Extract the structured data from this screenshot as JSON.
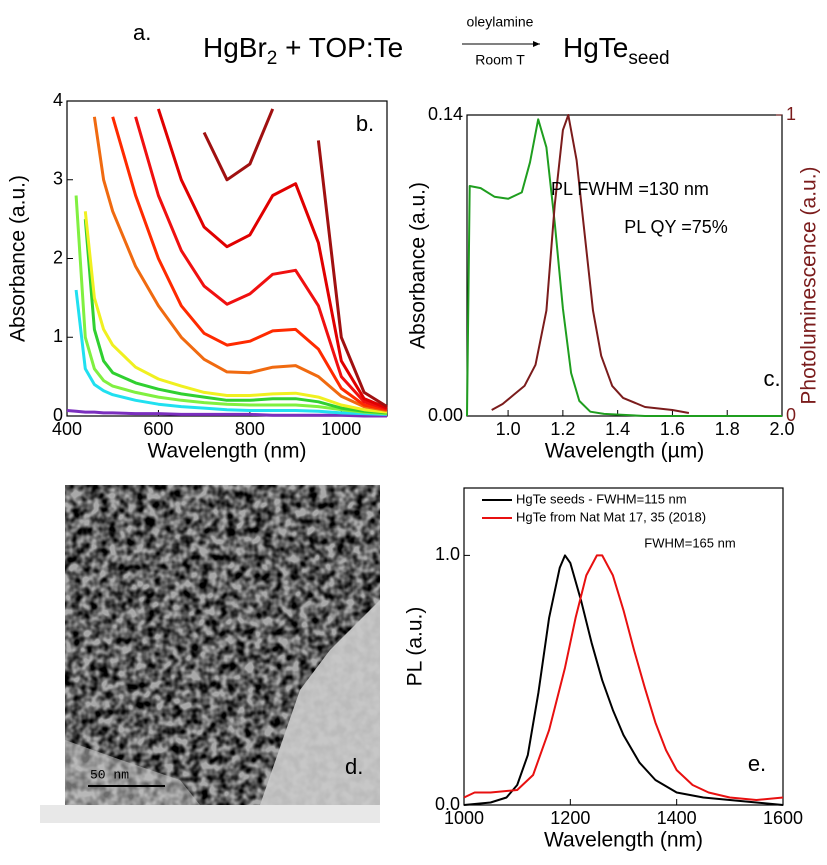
{
  "header": {
    "label": "a.",
    "reactant1": "HgBr",
    "reactant1_sub": "2",
    "reactant2": " + TOP:Te",
    "above_arrow": "oleylamine",
    "below_arrow": "Room T",
    "product": "HgTe",
    "product_sub": "seed"
  },
  "panel_d": {
    "label": "d.",
    "scale_bar": "50 nm"
  },
  "chart_data": [
    {
      "type": "line",
      "panel_label": "b.",
      "x_label": "Wavelength (nm)",
      "y_label": "Absorbance (a.u.)",
      "xlim": [
        400,
        1100
      ],
      "xticks": [
        400,
        600,
        800,
        1000
      ],
      "ylim": [
        0,
        4
      ],
      "yticks": [
        0,
        1,
        2,
        3,
        4
      ],
      "x": [
        400,
        420,
        440,
        460,
        480,
        500,
        550,
        600,
        650,
        700,
        750,
        800,
        850,
        900,
        950,
        1000,
        1050,
        1100
      ],
      "series": [
        {
          "color": "#7b2fbe",
          "values": [
            0.07,
            0.06,
            0.05,
            0.05,
            0.04,
            0.04,
            0.03,
            0.03,
            0.02,
            0.02,
            0.02,
            0.02,
            0.01,
            0.01,
            0.01,
            0.01,
            0,
            0
          ]
        },
        {
          "color": "#20e0f0",
          "values": [
            null,
            1.6,
            0.6,
            0.4,
            0.32,
            0.27,
            0.2,
            0.15,
            0.12,
            0.1,
            0.08,
            0.07,
            0.07,
            0.07,
            0.06,
            0.04,
            0.03,
            0.02
          ]
        },
        {
          "color": "#80f040",
          "values": [
            null,
            2.8,
            1.0,
            0.6,
            0.45,
            0.38,
            0.3,
            0.24,
            0.2,
            0.17,
            0.15,
            0.14,
            0.14,
            0.14,
            0.12,
            0.08,
            0.05,
            0.03
          ]
        },
        {
          "color": "#30d030",
          "values": [
            null,
            null,
            2.5,
            1.1,
            0.7,
            0.55,
            0.42,
            0.34,
            0.28,
            0.24,
            0.2,
            0.2,
            0.22,
            0.22,
            0.18,
            0.1,
            0.06,
            0.04
          ]
        },
        {
          "color": "#f0f020",
          "values": [
            null,
            null,
            2.6,
            1.5,
            1.1,
            0.9,
            0.62,
            0.47,
            0.38,
            0.3,
            0.26,
            0.26,
            0.28,
            0.29,
            0.24,
            0.14,
            0.08,
            0.05
          ]
        },
        {
          "color": "#f06a10",
          "values": [
            null,
            null,
            null,
            3.8,
            3.0,
            2.6,
            1.9,
            1.4,
            1.0,
            0.72,
            0.56,
            0.55,
            0.62,
            0.64,
            0.5,
            0.25,
            0.12,
            0.07
          ]
        },
        {
          "color": "#ff2a00",
          "values": [
            null,
            null,
            null,
            null,
            null,
            3.8,
            2.8,
            2.0,
            1.4,
            1.05,
            0.9,
            0.95,
            1.08,
            1.1,
            0.85,
            0.35,
            0.14,
            0.08
          ]
        },
        {
          "color": "#f01010",
          "values": [
            null,
            null,
            null,
            null,
            null,
            null,
            3.8,
            2.8,
            2.1,
            1.65,
            1.42,
            1.55,
            1.8,
            1.85,
            1.4,
            0.5,
            0.18,
            0.09
          ]
        },
        {
          "color": "#e00000",
          "values": [
            null,
            null,
            null,
            null,
            null,
            null,
            null,
            3.9,
            3.0,
            2.4,
            2.15,
            2.3,
            2.8,
            2.95,
            2.2,
            0.7,
            0.22,
            0.1
          ]
        },
        {
          "color": "#a01010",
          "values": [
            null,
            null,
            null,
            null,
            null,
            null,
            null,
            null,
            null,
            3.6,
            3.0,
            3.2,
            3.9,
            null,
            3.5,
            1.0,
            0.3,
            0.12
          ]
        }
      ]
    },
    {
      "type": "line",
      "panel_label": "c.",
      "x_label": "Wavelength (µm)",
      "y_label": "Absorbance (a.u.)",
      "y2_label": "Photoluminescence (a.u.)",
      "y2_color": "#7b1c1c",
      "annotations": [
        "PL FWHM =130 nm",
        "PL QY =75%"
      ],
      "xlim": [
        0.85,
        2.0
      ],
      "xticks": [
        {
          "value": 1.0,
          "label": "1.0"
        },
        1.2,
        1.4,
        1.6,
        1.8,
        {
          "value": 2.0,
          "label": "2.0"
        }
      ],
      "ylim": [
        0,
        0.14
      ],
      "yticks": [
        {
          "value": 0,
          "label": "0.00"
        },
        0.14
      ],
      "y2lim": [
        0,
        1
      ],
      "y2ticks": [
        0,
        1
      ],
      "series": [
        {
          "color": "#1f9e1f",
          "x": [
            0.85,
            0.86,
            0.9,
            0.95,
            1.0,
            1.05,
            1.08,
            1.11,
            1.14,
            1.17,
            1.2,
            1.23,
            1.26,
            1.3,
            1.35,
            1.5,
            2.0
          ],
          "values": [
            0,
            0.107,
            0.106,
            0.102,
            0.101,
            0.104,
            0.118,
            0.138,
            0.125,
            0.09,
            0.05,
            0.02,
            0.007,
            0.002,
            0.001,
            0,
            0
          ]
        },
        {
          "color": "#7b1c1c",
          "axis": "y2",
          "x": [
            0.94,
            0.98,
            1.02,
            1.06,
            1.1,
            1.14,
            1.17,
            1.2,
            1.22,
            1.25,
            1.28,
            1.31,
            1.34,
            1.38,
            1.42,
            1.5,
            1.6,
            1.66
          ],
          "values": [
            0.02,
            0.04,
            0.07,
            0.1,
            0.17,
            0.35,
            0.7,
            0.95,
            1.0,
            0.85,
            0.6,
            0.35,
            0.2,
            0.1,
            0.06,
            0.03,
            0.02,
            0.01
          ]
        }
      ]
    },
    {
      "type": "line",
      "panel_label": "e.",
      "x_label": "Wavelength (nm)",
      "y_label": "PL (a.u.)",
      "legend": "upper left",
      "annotations": [
        "FWHM=165 nm"
      ],
      "xlim": [
        1000,
        1600
      ],
      "xticks": [
        1000,
        1200,
        1400,
        1600
      ],
      "ylim": [
        0,
        1.27
      ],
      "yticks": [
        {
          "value": 0,
          "label": "0.0"
        },
        {
          "value": 1,
          "label": "1.0"
        }
      ],
      "series": [
        {
          "name": "HgTe seeds - FWHM=115 nm",
          "color": "#000000",
          "x": [
            1000,
            1050,
            1080,
            1100,
            1120,
            1140,
            1160,
            1180,
            1190,
            1200,
            1220,
            1240,
            1260,
            1280,
            1300,
            1330,
            1360,
            1400,
            1450,
            1500,
            1550,
            1600
          ],
          "values": [
            0.0,
            0.01,
            0.03,
            0.08,
            0.2,
            0.45,
            0.75,
            0.95,
            1.0,
            0.97,
            0.82,
            0.65,
            0.5,
            0.38,
            0.28,
            0.17,
            0.1,
            0.05,
            0.03,
            0.02,
            0.01,
            0.0
          ]
        },
        {
          "name": "HgTe from Nat Mat 17, 35 (2018)",
          "color": "#e81010",
          "x": [
            1000,
            1020,
            1050,
            1100,
            1130,
            1160,
            1190,
            1210,
            1230,
            1250,
            1260,
            1280,
            1300,
            1320,
            1340,
            1360,
            1380,
            1400,
            1430,
            1460,
            1500,
            1550,
            1600
          ],
          "values": [
            0.03,
            0.05,
            0.05,
            0.06,
            0.12,
            0.3,
            0.55,
            0.75,
            0.92,
            1.0,
            1.0,
            0.92,
            0.78,
            0.62,
            0.47,
            0.33,
            0.22,
            0.14,
            0.08,
            0.05,
            0.03,
            0.02,
            0.03
          ]
        }
      ]
    }
  ]
}
